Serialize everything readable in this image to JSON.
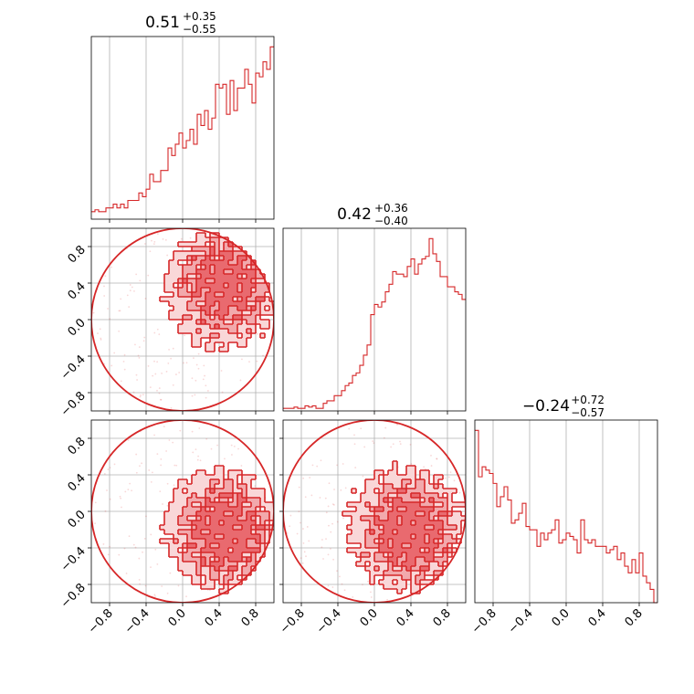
{
  "chart_data": {
    "type": "corner",
    "color": "#d62728",
    "grid": true,
    "parameters": 3,
    "axis_range": [
      -1.0,
      1.0
    ],
    "tick_values": [
      -0.8,
      -0.4,
      0.0,
      0.4,
      0.8
    ],
    "tick_labels": [
      "−0.8",
      "−0.4",
      "0.0",
      "0.4",
      "0.8"
    ],
    "titles": [
      {
        "median": "0.51",
        "plus": "+0.35",
        "minus": "−0.55"
      },
      {
        "median": "0.42",
        "plus": "+0.36",
        "minus": "−0.40"
      },
      {
        "median": "−0.24",
        "plus": "+0.72",
        "minus": "−0.57"
      }
    ],
    "histograms": [
      {
        "param": 0,
        "bin_edges_start": -1.0,
        "bin_width": 0.04,
        "counts": [
          4,
          5,
          4,
          4,
          6,
          6,
          8,
          6,
          8,
          6,
          10,
          10,
          10,
          14,
          12,
          16,
          24,
          20,
          20,
          26,
          26,
          38,
          34,
          40,
          46,
          38,
          42,
          48,
          40,
          56,
          50,
          58,
          48,
          54,
          72,
          70,
          72,
          56,
          74,
          58,
          70,
          70,
          80,
          72,
          62,
          78,
          76,
          84,
          80,
          92
        ]
      },
      {
        "param": 1,
        "bin_edges_start": -1.0,
        "bin_width": 0.04,
        "counts": [
          2,
          2,
          2,
          3,
          2,
          2,
          4,
          3,
          4,
          2,
          2,
          6,
          8,
          8,
          12,
          12,
          16,
          20,
          22,
          28,
          30,
          36,
          44,
          52,
          76,
          84,
          82,
          86,
          94,
          100,
          110,
          108,
          108,
          106,
          114,
          120,
          108,
          116,
          120,
          122,
          136,
          124,
          118,
          106,
          106,
          98,
          98,
          94,
          92,
          88
        ]
      },
      {
        "param": 2,
        "bin_edges_start": -1.0,
        "bin_width": 0.04,
        "counts": [
          104,
          76,
          82,
          80,
          78,
          72,
          58,
          64,
          70,
          62,
          48,
          50,
          54,
          60,
          46,
          44,
          44,
          34,
          42,
          38,
          42,
          44,
          50,
          36,
          38,
          42,
          40,
          38,
          30,
          50,
          38,
          36,
          38,
          34,
          34,
          34,
          30,
          32,
          34,
          26,
          30,
          22,
          18,
          26,
          18,
          30,
          16,
          12,
          8,
          0
        ]
      }
    ],
    "contour_panels": [
      {
        "x_param": 0,
        "y_param": 1
      },
      {
        "x_param": 0,
        "y_param": 2
      },
      {
        "x_param": 1,
        "y_param": 2
      }
    ],
    "support": "unit disk (x² + y² ≤ 1)"
  }
}
